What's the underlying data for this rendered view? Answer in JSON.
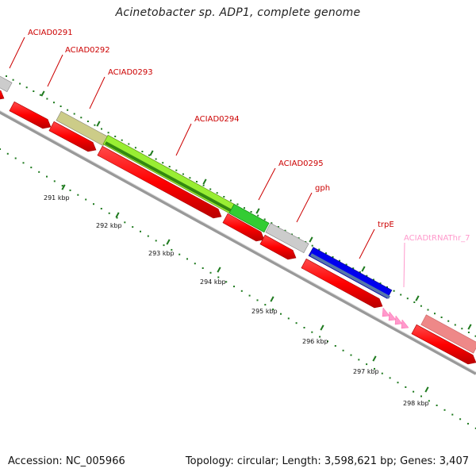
{
  "title": "Acinetobacter sp. ADP1, complete genome",
  "footer": {
    "accession": "Accession: NC_005966",
    "topology": "Topology: circular; Length: 3,598,621 bp; Genes: 3,407"
  },
  "colors": {
    "cds_red": "#ff0000",
    "label_red": "#cc0000",
    "trna_pink": "#ff99cc",
    "backbone": "#999999",
    "tick_green": "#1e7a1e"
  },
  "kbp_labels": [
    "291 kbp",
    "292 kbp",
    "293 kbp",
    "294 kbp",
    "295 kbp",
    "296 kbp",
    "297 kbp",
    "298 kbp"
  ],
  "gene_labels": [
    {
      "text": "ACIAD0291",
      "color": "#cc0000"
    },
    {
      "text": "ACIAD0292",
      "color": "#cc0000"
    },
    {
      "text": "ACIAD0293",
      "color": "#cc0000"
    },
    {
      "text": "ACIAD0294",
      "color": "#cc0000"
    },
    {
      "text": "ACIAD0295",
      "color": "#cc0000"
    },
    {
      "text": "gph",
      "color": "#cc0000"
    },
    {
      "text": "trpE",
      "color": "#cc0000"
    },
    {
      "text": "ACIADtRNAThr_7",
      "color": "#ff99cc"
    }
  ],
  "cog_blocks": [
    {
      "color": "#cccccc"
    },
    {
      "color": "#cccc88"
    },
    {
      "color": "#99ee33"
    },
    {
      "color": "#33cc33"
    },
    {
      "color": "#cccccc"
    },
    {
      "color": "#0000ee"
    },
    {
      "color": "#ee8888"
    }
  ]
}
